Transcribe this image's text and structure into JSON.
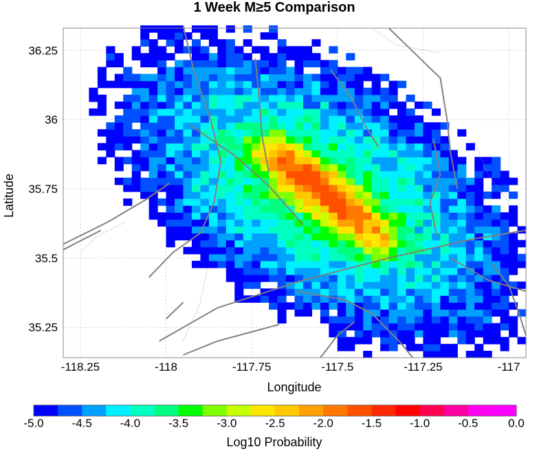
{
  "chart_data": {
    "type": "heatmap",
    "title": "1 Week M≥5 Comparison",
    "xlabel": "Longitude",
    "ylabel": "Latitude",
    "xlim": [
      -118.3,
      -116.95
    ],
    "ylim": [
      35.14,
      36.33
    ],
    "grid": true,
    "x_ticks": [
      -118.25,
      -118,
      -117.75,
      -117.5,
      -117.25,
      -117
    ],
    "x_tick_labels": [
      "-118.25",
      "-118",
      "-117.75",
      "-117.5",
      "-117.25",
      "-117"
    ],
    "y_ticks": [
      35.25,
      35.5,
      35.75,
      36,
      36.25
    ],
    "y_tick_labels": [
      "35.25",
      "35.5",
      "35.75",
      "36",
      "36.25"
    ],
    "cell_size_deg": 0.025,
    "field_model": {
      "description_of_values": "log10 probability per cell; values below -5 are not plotted (white)",
      "peak_center": [
        -117.56,
        35.73
      ],
      "ridge_from": [
        -117.69,
        35.89
      ],
      "ridge_to": [
        -117.38,
        35.57
      ],
      "peak_value": -1.7,
      "envelope_center": [
        -117.55,
        35.74
      ],
      "envelope_angle_deg": -40,
      "envelope_semi_axes_deg": [
        0.75,
        0.42
      ]
    },
    "colorbar": {
      "label": "Log10 Probability",
      "min": -5.0,
      "max": 0.0,
      "tick_labels": [
        "-5.0",
        "-4.5",
        "-4.0",
        "-3.5",
        "-3.0",
        "-2.5",
        "-2.0",
        "-1.5",
        "-1.0",
        "-0.5",
        "0.0"
      ],
      "colors": [
        "#0000ff",
        "#0050ff",
        "#00a0ff",
        "#00f0ff",
        "#00ffc0",
        "#00ff80",
        "#00ff00",
        "#80ff00",
        "#c8ff00",
        "#ffe600",
        "#ffc800",
        "#ffa000",
        "#ff7800",
        "#ff5000",
        "#ff2800",
        "#ff0000",
        "#ff0050",
        "#ff00a0",
        "#ff00f0",
        "#ff00ff"
      ]
    },
    "fault_color": "#808080"
  }
}
